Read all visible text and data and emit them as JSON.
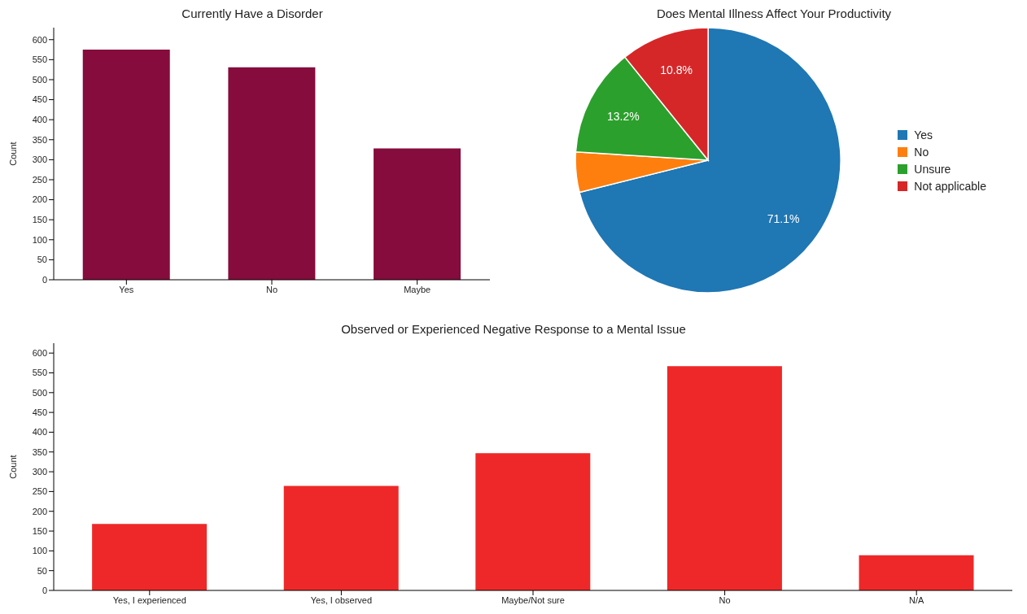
{
  "chart_data": [
    {
      "type": "bar",
      "title": "Currently Have a Disorder",
      "ylabel": "Count",
      "categories": [
        "Yes",
        "No",
        "Maybe"
      ],
      "values": [
        575,
        531,
        328
      ],
      "color": "#850c3c",
      "ylim": [
        0,
        630
      ],
      "yticks": [
        0,
        50,
        100,
        150,
        200,
        250,
        300,
        350,
        400,
        450,
        500,
        550,
        600
      ],
      "grid": false
    },
    {
      "type": "pie",
      "title": "Does Mental Illness Affect Your Productivity",
      "categories": [
        "Yes",
        "No",
        "Unsure",
        "Not applicable"
      ],
      "values": [
        71.1,
        4.9,
        13.2,
        10.8
      ],
      "colors": [
        "#1f77b4",
        "#ff7f0e",
        "#2ca02c",
        "#d62728"
      ],
      "value_labels": [
        "71.1%",
        null,
        "13.2%",
        "10.8%"
      ],
      "legend": "right"
    },
    {
      "type": "bar",
      "title": "Observed or Experienced Negative Response to a Mental Issue",
      "ylabel": "Count",
      "categories": [
        "Yes, I experienced",
        "Yes, I observed",
        "Maybe/Not sure",
        "No",
        "N/A"
      ],
      "values": [
        168,
        264,
        347,
        567,
        89
      ],
      "color": "#ee2828",
      "ylim": [
        0,
        625
      ],
      "yticks": [
        0,
        50,
        100,
        150,
        200,
        250,
        300,
        350,
        400,
        450,
        500,
        550,
        600
      ],
      "grid": false
    }
  ]
}
